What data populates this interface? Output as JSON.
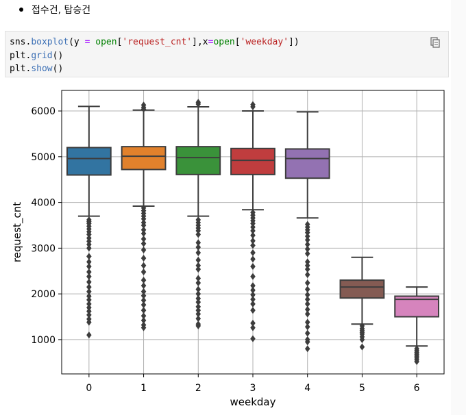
{
  "bullet": {
    "text": "접수건, 탑승건"
  },
  "code": {
    "lines": [
      [
        {
          "t": "sns",
          "c": ""
        },
        {
          "t": ".",
          "c": ""
        },
        {
          "t": "boxplot",
          "c": "c-fn"
        },
        {
          "t": "(y ",
          "c": ""
        },
        {
          "t": "=",
          "c": "c-eq"
        },
        {
          "t": " ",
          "c": ""
        },
        {
          "t": "open",
          "c": "c-green"
        },
        {
          "t": "[",
          "c": ""
        },
        {
          "t": "'request_cnt'",
          "c": "c-str"
        },
        {
          "t": "],x",
          "c": ""
        },
        {
          "t": "=",
          "c": "c-eq"
        },
        {
          "t": "open",
          "c": "c-green"
        },
        {
          "t": "[",
          "c": ""
        },
        {
          "t": "'weekday'",
          "c": "c-str"
        },
        {
          "t": "])",
          "c": ""
        }
      ],
      [
        {
          "t": "plt",
          "c": ""
        },
        {
          "t": ".",
          "c": ""
        },
        {
          "t": "grid",
          "c": "c-fn"
        },
        {
          "t": "()",
          "c": ""
        }
      ],
      [
        {
          "t": "plt",
          "c": ""
        },
        {
          "t": ".",
          "c": ""
        },
        {
          "t": "show",
          "c": "c-fn"
        },
        {
          "t": "()",
          "c": ""
        }
      ]
    ]
  },
  "chart_data": {
    "type": "box",
    "xlabel": "weekday",
    "ylabel": "request_cnt",
    "ylim": [
      250,
      6450
    ],
    "yticks": [
      1000,
      2000,
      3000,
      4000,
      5000,
      6000
    ],
    "grid": true,
    "categories": [
      "0",
      "1",
      "2",
      "3",
      "4",
      "5",
      "6"
    ],
    "boxes": [
      {
        "color": "#3274a1",
        "q1": 4600,
        "median": 4960,
        "q3": 5200,
        "whislo": 3700,
        "whishi": 6100,
        "fliers": [
          3620,
          3580,
          3540,
          3480,
          3420,
          3360,
          3300,
          3220,
          3150,
          3080,
          3000,
          2820,
          2700,
          2600,
          2480,
          2380,
          2260,
          2150,
          2050,
          1950,
          1870,
          1780,
          1700,
          1620,
          1540,
          1450,
          1380,
          1100
        ]
      },
      {
        "color": "#e1812c",
        "q1": 4720,
        "median": 5010,
        "q3": 5220,
        "whislo": 3920,
        "whishi": 6020,
        "fliers": [
          6130,
          6080,
          6040,
          3880,
          3820,
          3760,
          3700,
          3640,
          3560,
          3500,
          3400,
          3320,
          3200,
          3100,
          2960,
          2780,
          2620,
          2480,
          2300,
          2180,
          2050,
          1960,
          1860,
          1760,
          1640,
          1520,
          1420,
          1320,
          1260
        ]
      },
      {
        "color": "#3a923a",
        "q1": 4610,
        "median": 4980,
        "q3": 5220,
        "whislo": 3700,
        "whishi": 6090,
        "fliers": [
          6190,
          6150,
          3620,
          3560,
          3500,
          3440,
          3380,
          3300,
          3120,
          3020,
          2900,
          2740,
          2620,
          2540,
          2340,
          2240,
          2100,
          2000,
          1900,
          1820,
          1720,
          1640,
          1560,
          1460,
          1340,
          1300
        ]
      },
      {
        "color": "#c03d3e",
        "q1": 4610,
        "median": 4920,
        "q3": 5180,
        "whislo": 3840,
        "whishi": 6000,
        "fliers": [
          6140,
          6090,
          3780,
          3720,
          3660,
          3600,
          3540,
          3460,
          3380,
          3280,
          3160,
          3060,
          2900,
          2760,
          2600,
          2380,
          2180,
          2080,
          1980,
          1880,
          1780,
          1640,
          1360,
          1260,
          1020
        ]
      },
      {
        "color": "#9372b2",
        "q1": 4530,
        "median": 4960,
        "q3": 5170,
        "whislo": 3660,
        "whishi": 5980,
        "fliers": [
          3520,
          3460,
          3400,
          3340,
          3260,
          3180,
          3080,
          2980,
          2880,
          2700,
          2620,
          2540,
          2420,
          2240,
          2100,
          1980,
          1880,
          1780,
          1660,
          1560,
          1380,
          1280,
          1140,
          1000,
          950,
          800
        ]
      },
      {
        "color": "#845b53",
        "q1": 1910,
        "median": 2150,
        "q3": 2300,
        "whislo": 1340,
        "whishi": 2800,
        "fliers": [
          1300,
          1240,
          1200,
          1160,
          1120,
          1060,
          1000,
          840
        ]
      },
      {
        "color": "#d684bd",
        "q1": 1500,
        "median": 1880,
        "q3": 1950,
        "whislo": 860,
        "whishi": 2150,
        "fliers": [
          800,
          760,
          720,
          680,
          640,
          600,
          560,
          520
        ]
      }
    ]
  }
}
